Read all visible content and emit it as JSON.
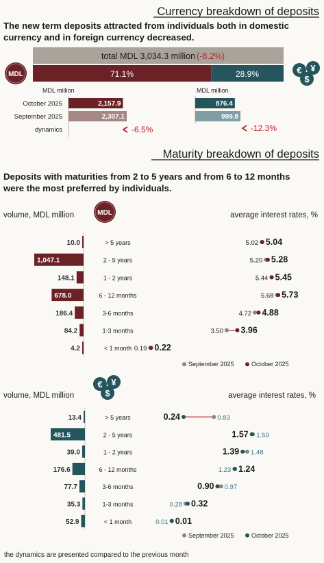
{
  "colors": {
    "mdl": "#6b2227",
    "mdl_light": "#a48886",
    "fx": "#24545c",
    "fx_light": "#7f9da2",
    "total_bar": "#aaa39b",
    "negative": "#c0202a",
    "sep_dot": "#8a8680",
    "oct_mdl": "#6b2227",
    "oct_fx": "#24545c"
  },
  "header": {
    "title": "Currency breakdown of deposits",
    "subtitle_line1": "The new term deposits attracted from individuals both in domestic",
    "subtitle_line2": "currency and in foreign currency decreased."
  },
  "currency": {
    "total_label": "total MDL 3,034.3 million",
    "total_change": "(-8.2%)",
    "mdl_badge": "MDL",
    "mdl_share": "71.1%",
    "fx_share": "28.9%",
    "mdl_icon": "mdl-coin-icon",
    "fx_icon": "currency-coins-icon",
    "unit_left": "MDL million",
    "unit_right": "MDL million",
    "row_labels": [
      "October 2025",
      "September 2025",
      "dynamics"
    ],
    "mdl_values": [
      "2,157.9",
      "2,307.1"
    ],
    "mdl_dynamics": "-6.5%",
    "fx_values": [
      "876.4",
      "999.8"
    ],
    "fx_dynamics": "-12.3%"
  },
  "maturity": {
    "title": "Maturity breakdown of deposits",
    "subtitle_line1": "Deposits with maturities from 2 to 5 years and from 6 to 12 months",
    "subtitle_line2": "were the most preferred by individuals.",
    "footnote": "the dynamics are presented compared to the previous month"
  },
  "chart_data": [
    {
      "type": "bar",
      "currency": "MDL",
      "volume_label": "volume, MDL million",
      "rates_label": "average interest rates, %",
      "categories": [
        "> 5 years",
        "2 - 5 years",
        "1 - 2 years",
        "6 - 12 months",
        "3-6 months",
        "1-3 months",
        "< 1 month"
      ],
      "volume_text": [
        "10.0",
        "1,047.1",
        "148.1",
        "678.0",
        "186.4",
        "84.2",
        "4.2"
      ],
      "volume": [
        10.0,
        1047.1,
        148.1,
        678.0,
        186.4,
        84.2,
        4.2
      ],
      "rates_september": [
        5.02,
        5.2,
        5.44,
        5.68,
        4.72,
        3.5,
        0.19
      ],
      "rates_october": [
        5.04,
        5.28,
        5.45,
        5.73,
        4.88,
        3.96,
        0.22
      ],
      "rates_september_text": [
        "5.02",
        "5.20",
        "5.44",
        "5.68",
        "4.72",
        "3.50",
        "0.19"
      ],
      "rates_october_text": [
        "5.04",
        "5.28",
        "5.45",
        "5.73",
        "4.88",
        "3.96",
        "0.22"
      ],
      "legend": [
        "September 2025",
        "October 2025"
      ]
    },
    {
      "type": "bar",
      "currency": "foreign",
      "volume_label": "volume, MDL million",
      "rates_label": "average interest rates, %",
      "categories": [
        "> 5 years",
        "2 - 5 years",
        "1 - 2 years",
        "6 - 12 months",
        "3-6 months",
        "1-3 months",
        "< 1 month"
      ],
      "volume_text": [
        "13.4",
        "481.5",
        "39.0",
        "176.6",
        "77.7",
        "35.3",
        "52.9"
      ],
      "volume": [
        13.4,
        481.5,
        39.0,
        176.6,
        77.7,
        35.3,
        52.9
      ],
      "rates_september": [
        0.83,
        1.59,
        1.48,
        1.23,
        0.97,
        0.28,
        0.01
      ],
      "rates_october": [
        0.24,
        1.57,
        1.39,
        1.24,
        0.9,
        0.32,
        0.01
      ],
      "rates_september_text": [
        "0.83",
        "1.59",
        "1.48",
        "1.23",
        "0.97",
        "0.28",
        "0.01"
      ],
      "rates_october_text": [
        "0.24",
        "1.57",
        "1.39",
        "1.24",
        "0.90",
        "0.32",
        "0.01"
      ],
      "legend": [
        "September 2025",
        "October 2025"
      ]
    }
  ]
}
